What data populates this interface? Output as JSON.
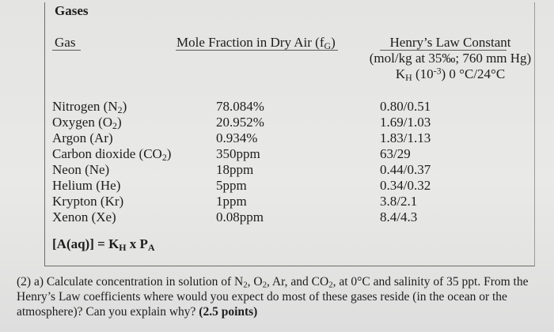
{
  "title": "Gases",
  "headers": {
    "gas": "Gas",
    "mole_fraction": "Mole Fraction in Dry Air (f",
    "mole_sub": "G",
    "mole_close": ")",
    "henry_line1": "Henry’s Law Constant",
    "henry_line2": "(mol/kg at 35‰; 760 mm Hg)",
    "henry_line3_k": "K",
    "henry_line3_sub": "H",
    "henry_line3_mid": " (10",
    "henry_line3_sup": "-3",
    "henry_line3_end": ") 0 °C/24°C"
  },
  "gases": [
    {
      "name": "Nitrogen (N",
      "sub": "2",
      "close": ")",
      "mole": "78.084%",
      "kh": "0.80/0.51"
    },
    {
      "name": "Oxygen (O",
      "sub": "2",
      "close": ")",
      "mole": "20.952%",
      "kh": "1.69/1.03"
    },
    {
      "name": "Argon (Ar)",
      "sub": "",
      "close": "",
      "mole": "0.934%",
      "kh": "1.83/1.13"
    },
    {
      "name": "Carbon dioxide (CO",
      "sub": "2",
      "close": ")",
      "mole": "350ppm",
      "kh": "63/29"
    },
    {
      "name": "Neon (Ne)",
      "sub": "",
      "close": "",
      "mole": "18ppm",
      "kh": "0.44/0.37"
    },
    {
      "name": "Helium (He)",
      "sub": "",
      "close": "",
      "mole": "5ppm",
      "kh": "0.34/0.32"
    },
    {
      "name": "Krypton (Kr)",
      "sub": "",
      "close": "",
      "mole": "1ppm",
      "kh": "3.8/2.1"
    },
    {
      "name": "Xenon (Xe)",
      "sub": "",
      "close": "",
      "mole": "0.08ppm",
      "kh": "8.4/4.3"
    }
  ],
  "equation": {
    "left": "[A(aq)] = K",
    "k_sub": "H",
    "mid": " x P",
    "p_sub": "A"
  },
  "question": {
    "part1": "(2) a) Calculate concentration in solution of N",
    "s1": "2",
    "p2": ", O",
    "s2": "2",
    "p3": ", Ar, and CO",
    "s3": "2",
    "p4": ", at 0°C and salinity of 35 ppt. From the Henry’s Law coefficients where would you expect do most of these gases reside (in the ocean or the atmosphere)? Can you explain why?",
    "points": "(2.5 points)"
  }
}
